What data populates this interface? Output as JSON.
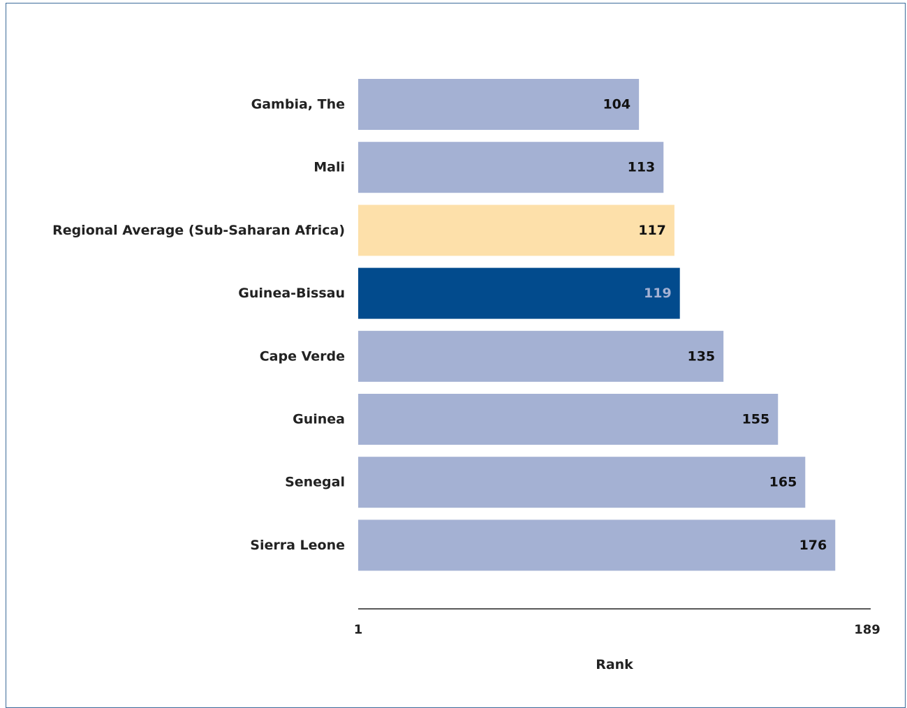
{
  "chart_data": {
    "type": "bar",
    "orientation": "horizontal",
    "categories": [
      "Gambia, The",
      "Mali",
      "Regional Average (Sub-Saharan Africa)",
      "Guinea-Bissau",
      "Cape Verde",
      "Guinea",
      "Senegal",
      "Sierra Leone"
    ],
    "values": [
      104,
      113,
      117,
      119,
      135,
      155,
      165,
      176
    ],
    "data_labels": [
      "104",
      "113",
      "117",
      "119",
      "135",
      "155",
      "165",
      "176"
    ],
    "bar_colors": [
      "#a4b1d3",
      "#a4b1d3",
      "#fde0aa",
      "#024b8d",
      "#a4b1d3",
      "#a4b1d3",
      "#a4b1d3",
      "#a4b1d3"
    ],
    "label_colors": [
      "#111111",
      "#111111",
      "#111111",
      "#a4b1d3",
      "#111111",
      "#111111",
      "#111111",
      "#111111"
    ],
    "xlim": [
      1,
      189
    ],
    "xticks": [
      "1",
      "189"
    ],
    "xlabel": "Rank",
    "ylabel": "",
    "title": "",
    "grid": false,
    "legend": "none"
  },
  "colors": {
    "default_bar": "#a4b1d3",
    "regional_bar": "#fde0aa",
    "highlight_bar": "#024b8d",
    "border": "#3b6a99"
  }
}
